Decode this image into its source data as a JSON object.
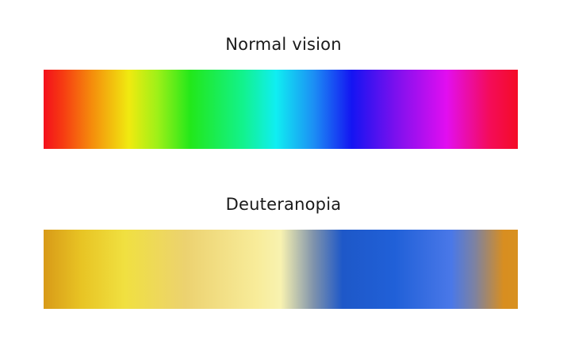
{
  "panels": [
    {
      "title": "Normal vision",
      "stops": [
        {
          "color": "#f4101c",
          "pos": 0
        },
        {
          "color": "#f63a12",
          "pos": 4
        },
        {
          "color": "#f58a0c",
          "pos": 10
        },
        {
          "color": "#f0ea10",
          "pos": 18
        },
        {
          "color": "#9ef018",
          "pos": 24
        },
        {
          "color": "#22e81a",
          "pos": 31
        },
        {
          "color": "#12f28c",
          "pos": 42
        },
        {
          "color": "#10eef2",
          "pos": 49
        },
        {
          "color": "#1c8ef4",
          "pos": 57
        },
        {
          "color": "#1414f2",
          "pos": 65
        },
        {
          "color": "#7a10ee",
          "pos": 74
        },
        {
          "color": "#e20ef0",
          "pos": 85
        },
        {
          "color": "#f40c5a",
          "pos": 94
        },
        {
          "color": "#f40c26",
          "pos": 100
        }
      ]
    },
    {
      "title": "Deuteranopia",
      "stops": [
        {
          "color": "#d89a18",
          "pos": 0
        },
        {
          "color": "#e8c424",
          "pos": 8
        },
        {
          "color": "#f0e040",
          "pos": 17
        },
        {
          "color": "#ecd270",
          "pos": 30
        },
        {
          "color": "#f8ec9a",
          "pos": 45
        },
        {
          "color": "#f8f2b0",
          "pos": 50
        },
        {
          "color": "#7e92ac",
          "pos": 57
        },
        {
          "color": "#1e58c8",
          "pos": 63
        },
        {
          "color": "#2060d8",
          "pos": 74
        },
        {
          "color": "#4a78e8",
          "pos": 86
        },
        {
          "color": "#7e82a0",
          "pos": 91
        },
        {
          "color": "#d88e20",
          "pos": 97
        },
        {
          "color": "#d89020",
          "pos": 100
        }
      ]
    }
  ]
}
